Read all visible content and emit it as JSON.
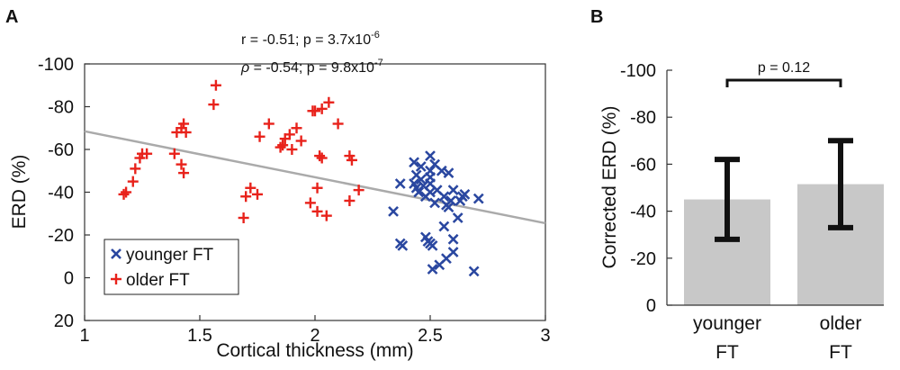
{
  "chart_data": [
    {
      "panel": "A",
      "type": "scatter",
      "xlabel": "Cortical thickness (mm)",
      "ylabel": "ERD (%)",
      "xlim": [
        1,
        3
      ],
      "ylim": [
        20,
        -100
      ],
      "xticks": [
        "1",
        "1.5",
        "2",
        "2.5",
        "3"
      ],
      "yticks": [
        "-100",
        "-80",
        "-60",
        "-40",
        "-20",
        "0",
        "20"
      ],
      "stats": {
        "r_line_pre": "r = -0.51; p = 3.7x10",
        "r_exp": "-6",
        "rho_symbol": "ρ",
        "rho_line_pre": " = -0.54; p = 9.8x10",
        "rho_exp": "-7"
      },
      "fit_line": {
        "x": [
          1,
          3
        ],
        "y": [
          -68.5,
          -25.5
        ],
        "color": "#aaaaaa"
      },
      "series": [
        {
          "name": "younger FT",
          "marker": "x",
          "color": "#2a47a0",
          "points": [
            [
              2.34,
              -31
            ],
            [
              2.37,
              -44
            ],
            [
              2.37,
              -16
            ],
            [
              2.38,
              -15
            ],
            [
              2.43,
              -54
            ],
            [
              2.43,
              -44
            ],
            [
              2.44,
              -42
            ],
            [
              2.44,
              -48
            ],
            [
              2.45,
              -40
            ],
            [
              2.46,
              -52
            ],
            [
              2.46,
              -46
            ],
            [
              2.47,
              -43
            ],
            [
              2.48,
              -38
            ],
            [
              2.48,
              -19
            ],
            [
              2.49,
              -17
            ],
            [
              2.5,
              -57
            ],
            [
              2.5,
              -50
            ],
            [
              2.5,
              -47
            ],
            [
              2.5,
              -44
            ],
            [
              2.5,
              -40
            ],
            [
              2.5,
              -16
            ],
            [
              2.51,
              -15
            ],
            [
              2.51,
              -4
            ],
            [
              2.52,
              -53
            ],
            [
              2.52,
              -35
            ],
            [
              2.53,
              -41
            ],
            [
              2.54,
              -6
            ],
            [
              2.55,
              -50
            ],
            [
              2.56,
              -38
            ],
            [
              2.56,
              -24
            ],
            [
              2.57,
              -34
            ],
            [
              2.57,
              -9
            ],
            [
              2.58,
              -49
            ],
            [
              2.58,
              -33
            ],
            [
              2.59,
              -36
            ],
            [
              2.6,
              -41
            ],
            [
              2.6,
              -18
            ],
            [
              2.6,
              -12
            ],
            [
              2.62,
              -28
            ],
            [
              2.63,
              -36
            ],
            [
              2.64,
              -38
            ],
            [
              2.65,
              -39
            ],
            [
              2.69,
              -3
            ],
            [
              2.71,
              -37
            ]
          ]
        },
        {
          "name": "older FT",
          "marker": "+",
          "color": "#e8221b",
          "points": [
            [
              1.17,
              -39
            ],
            [
              1.18,
              -40
            ],
            [
              1.21,
              -45
            ],
            [
              1.22,
              -51
            ],
            [
              1.24,
              -56
            ],
            [
              1.25,
              -58
            ],
            [
              1.27,
              -58
            ],
            [
              1.39,
              -58
            ],
            [
              1.4,
              -68
            ],
            [
              1.42,
              -53
            ],
            [
              1.42,
              -70
            ],
            [
              1.43,
              -72
            ],
            [
              1.43,
              -49
            ],
            [
              1.44,
              -68
            ],
            [
              1.56,
              -81
            ],
            [
              1.57,
              -90
            ],
            [
              1.69,
              -28
            ],
            [
              1.7,
              -38
            ],
            [
              1.72,
              -42
            ],
            [
              1.75,
              -39
            ],
            [
              1.76,
              -66
            ],
            [
              1.8,
              -72
            ],
            [
              1.85,
              -61
            ],
            [
              1.86,
              -62
            ],
            [
              1.87,
              -65
            ],
            [
              1.89,
              -67
            ],
            [
              1.9,
              -60
            ],
            [
              1.92,
              -70
            ],
            [
              1.94,
              -64
            ],
            [
              1.98,
              -35
            ],
            [
              1.99,
              -78
            ],
            [
              2.0,
              -78
            ],
            [
              2.01,
              -42
            ],
            [
              2.01,
              -31
            ],
            [
              2.02,
              -57
            ],
            [
              2.03,
              -56
            ],
            [
              2.03,
              -79
            ],
            [
              2.05,
              -29
            ],
            [
              2.06,
              -82
            ],
            [
              2.1,
              -72
            ],
            [
              2.15,
              -36
            ],
            [
              2.15,
              -57
            ],
            [
              2.16,
              -55
            ],
            [
              2.19,
              -41
            ]
          ]
        }
      ]
    },
    {
      "panel": "B",
      "type": "bar",
      "ylabel": "Corrected ERD (%)",
      "categories": [
        "younger FT",
        "older FT"
      ],
      "category_lines": [
        [
          "younger",
          "FT"
        ],
        [
          "older",
          "FT"
        ]
      ],
      "values": [
        -45,
        -51.5
      ],
      "error_low": [
        -28,
        -33
      ],
      "error_high": [
        -62,
        -70
      ],
      "ylim": [
        0,
        -100
      ],
      "yticks": [
        "-100",
        "-80",
        "-60",
        "-40",
        "-20",
        "0"
      ],
      "bar_color": "#c8c8c8",
      "significance": "p = 0.12"
    }
  ]
}
